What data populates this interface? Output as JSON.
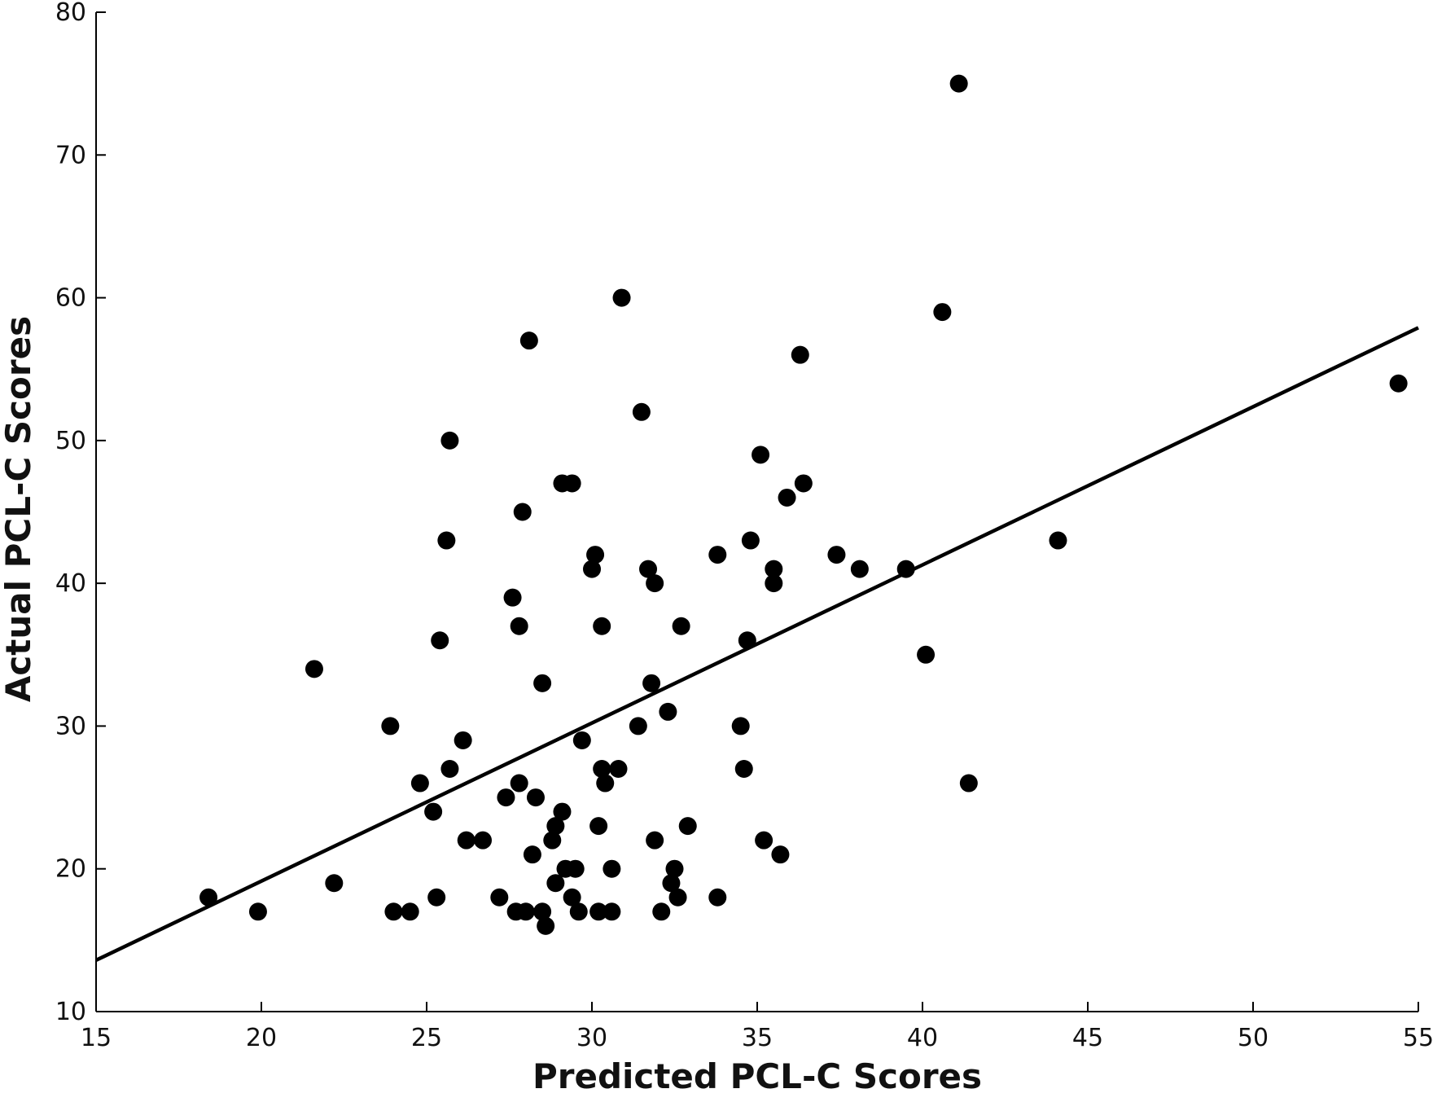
{
  "chart_data": {
    "type": "scatter",
    "title": "",
    "xlabel": "Predicted PCL-C Scores",
    "ylabel": "Actual PCL-C Scores",
    "xlim": [
      15,
      55
    ],
    "ylim": [
      10,
      80
    ],
    "x_ticks": [
      "15",
      "20",
      "25",
      "30",
      "35",
      "40",
      "45",
      "50",
      "55"
    ],
    "y_ticks": [
      "10",
      "20",
      "30",
      "40",
      "50",
      "60",
      "70",
      "80"
    ],
    "grid": false,
    "legend": "none",
    "colors": {
      "points": "#000000",
      "line": "#000000"
    },
    "series": [
      {
        "points": [
          [
            18.4,
            18
          ],
          [
            19.9,
            17
          ],
          [
            21.6,
            34
          ],
          [
            22.2,
            19
          ],
          [
            23.9,
            30
          ],
          [
            24.0,
            17
          ],
          [
            24.5,
            17
          ],
          [
            24.8,
            26
          ],
          [
            25.2,
            24
          ],
          [
            25.3,
            18
          ],
          [
            25.4,
            36
          ],
          [
            25.6,
            43
          ],
          [
            25.7,
            50
          ],
          [
            25.7,
            27
          ],
          [
            26.1,
            29
          ],
          [
            26.2,
            22
          ],
          [
            26.7,
            22
          ],
          [
            27.2,
            18
          ],
          [
            27.4,
            25
          ],
          [
            27.6,
            39
          ],
          [
            27.7,
            17
          ],
          [
            27.8,
            37
          ],
          [
            27.8,
            26
          ],
          [
            27.9,
            45
          ],
          [
            28.0,
            17
          ],
          [
            28.1,
            57
          ],
          [
            28.2,
            21
          ],
          [
            28.3,
            25
          ],
          [
            28.5,
            17
          ],
          [
            28.5,
            33
          ],
          [
            28.6,
            16
          ],
          [
            28.8,
            22
          ],
          [
            28.9,
            23
          ],
          [
            28.9,
            19
          ],
          [
            29.1,
            24
          ],
          [
            29.1,
            47
          ],
          [
            29.2,
            20
          ],
          [
            29.4,
            47
          ],
          [
            29.4,
            18
          ],
          [
            29.5,
            20
          ],
          [
            29.6,
            17
          ],
          [
            29.7,
            29
          ],
          [
            30.0,
            41
          ],
          [
            30.1,
            42
          ],
          [
            30.2,
            23
          ],
          [
            30.2,
            17
          ],
          [
            30.3,
            27
          ],
          [
            30.3,
            37
          ],
          [
            30.4,
            26
          ],
          [
            30.6,
            20
          ],
          [
            30.6,
            17
          ],
          [
            30.8,
            27
          ],
          [
            30.9,
            60
          ],
          [
            31.4,
            30
          ],
          [
            31.5,
            52
          ],
          [
            31.7,
            41
          ],
          [
            31.8,
            33
          ],
          [
            31.9,
            40
          ],
          [
            31.9,
            22
          ],
          [
            32.1,
            17
          ],
          [
            32.3,
            31
          ],
          [
            32.4,
            19
          ],
          [
            32.5,
            20
          ],
          [
            32.6,
            18
          ],
          [
            32.7,
            37
          ],
          [
            32.9,
            23
          ],
          [
            33.8,
            42
          ],
          [
            33.8,
            18
          ],
          [
            34.5,
            30
          ],
          [
            34.6,
            27
          ],
          [
            34.7,
            36
          ],
          [
            34.8,
            43
          ],
          [
            35.1,
            49
          ],
          [
            35.2,
            22
          ],
          [
            35.5,
            40
          ],
          [
            35.5,
            41
          ],
          [
            35.7,
            21
          ],
          [
            35.9,
            46
          ],
          [
            36.3,
            56
          ],
          [
            36.4,
            47
          ],
          [
            37.4,
            42
          ],
          [
            38.1,
            41
          ],
          [
            39.5,
            41
          ],
          [
            40.1,
            35
          ],
          [
            40.6,
            59
          ],
          [
            41.1,
            75
          ],
          [
            41.4,
            26
          ],
          [
            44.1,
            43
          ],
          [
            54.4,
            54
          ]
        ]
      }
    ],
    "regression_line": {
      "x": [
        15,
        55
      ],
      "y": [
        13.6,
        57.9
      ]
    }
  }
}
